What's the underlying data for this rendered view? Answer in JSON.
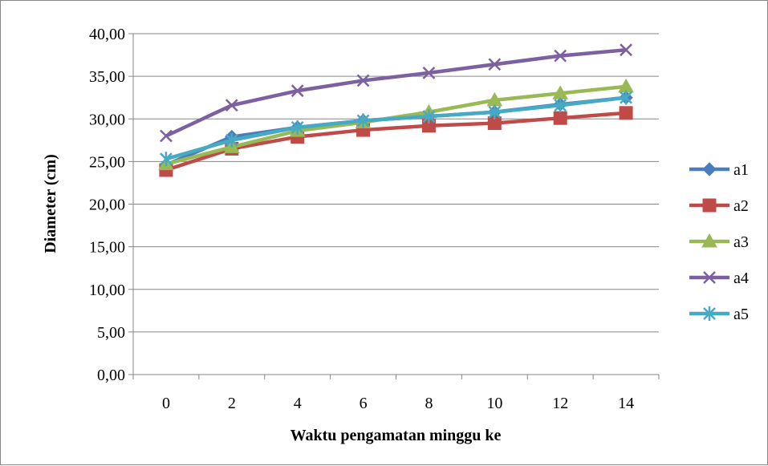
{
  "chart_data": {
    "type": "line",
    "title": "",
    "xlabel": "Waktu pengamatan minggu ke",
    "ylabel": "Diameter  (cm)",
    "categories": [
      "0",
      "2",
      "4",
      "6",
      "8",
      "10",
      "12",
      "14"
    ],
    "ylim": [
      0,
      40
    ],
    "y_ticks": [
      "0,00",
      "5,00",
      "10,00",
      "15,00",
      "20,00",
      "25,00",
      "30,00",
      "35,00",
      "40,00"
    ],
    "grid": "horizontal",
    "legend_position": "right",
    "series": [
      {
        "name": "a1",
        "color": "#4a7ebb",
        "marker": "diamond",
        "values": [
          24.6,
          27.9,
          29.0,
          29.8,
          30.3,
          30.8,
          31.7,
          32.5
        ]
      },
      {
        "name": "a2",
        "color": "#be4b48",
        "marker": "square",
        "values": [
          24.0,
          26.5,
          27.9,
          28.7,
          29.2,
          29.5,
          30.1,
          30.7
        ]
      },
      {
        "name": "a3",
        "color": "#98b954",
        "marker": "triangle",
        "values": [
          24.7,
          26.7,
          28.6,
          29.6,
          30.8,
          32.2,
          33.0,
          33.8
        ]
      },
      {
        "name": "a4",
        "color": "#7d60a0",
        "marker": "x",
        "values": [
          28.0,
          31.6,
          33.3,
          34.5,
          35.4,
          36.4,
          37.4,
          38.1
        ]
      },
      {
        "name": "a5",
        "color": "#46aac5",
        "marker": "star",
        "values": [
          25.3,
          27.5,
          29.0,
          29.8,
          30.3,
          30.8,
          31.6,
          32.5
        ]
      }
    ]
  }
}
